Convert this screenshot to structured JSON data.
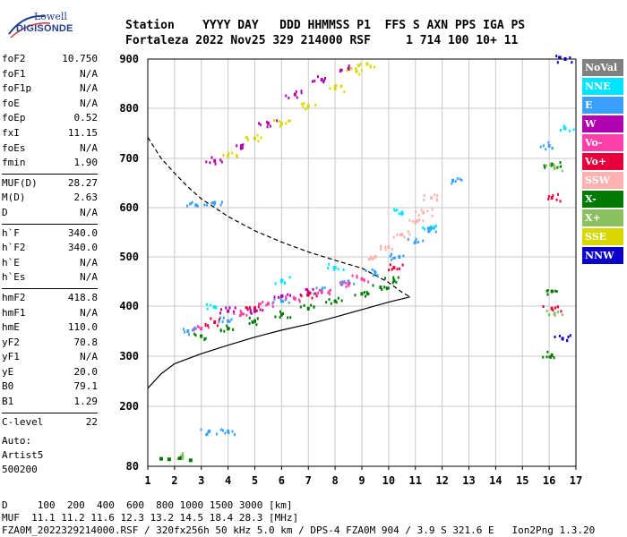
{
  "logo": {
    "line1": "Lowell",
    "line2": "DIGISONDE"
  },
  "header": {
    "labels": "Station    YYYY DAY   DDD HHMMSS P1  FFS S AXN PPS IGA PS",
    "values": "Fortaleza 2022 Nov25 329 214000 RSF     1 714 100 10+ 11"
  },
  "params_groups": [
    [
      {
        "label": "foF2",
        "value": "10.750"
      },
      {
        "label": "foF1",
        "value": "N/A"
      },
      {
        "label": "foF1p",
        "value": "N/A"
      },
      {
        "label": "foE",
        "value": "N/A"
      },
      {
        "label": "foEp",
        "value": "0.52"
      },
      {
        "label": "fxI",
        "value": "11.15"
      },
      {
        "label": "foEs",
        "value": "N/A"
      },
      {
        "label": "fmin",
        "value": "1.90"
      }
    ],
    [
      {
        "label": "MUF(D)",
        "value": "28.27"
      },
      {
        "label": "M(D)",
        "value": "2.63"
      },
      {
        "label": "D",
        "value": "N/A"
      }
    ],
    [
      {
        "label": "h`F",
        "value": "340.0"
      },
      {
        "label": "h`F2",
        "value": "340.0"
      },
      {
        "label": "h`E",
        "value": "N/A"
      },
      {
        "label": "h`Es",
        "value": "N/A"
      }
    ],
    [
      {
        "label": "hmF2",
        "value": "418.8"
      },
      {
        "label": "hmF1",
        "value": "N/A"
      },
      {
        "label": "hmE",
        "value": "110.0"
      },
      {
        "label": "yF2",
        "value": "70.8"
      },
      {
        "label": "yF1",
        "value": "N/A"
      },
      {
        "label": "yE",
        "value": "20.0"
      },
      {
        "label": "B0",
        "value": "79.1"
      },
      {
        "label": "B1",
        "value": "1.29"
      }
    ],
    [
      {
        "label": "C-level",
        "value": "22"
      }
    ]
  ],
  "auto": {
    "line1": "Auto:",
    "line2": "Artist5",
    "line3": "500200"
  },
  "footer": {
    "line1": "D     100  200  400  600  800 1000 1500 3000 [km]",
    "line2": "MUF  11.1 11.2 11.6 12.3 13.2 14.5 18.4 28.3 [MHz]",
    "line3": "FZA0M_2022329214000.RSF / 320fx256h 50 kHz 5.0 km / DPS-4 FZA0M 904 / 3.9 S 321.6 E   Ion2Png 1.3.20"
  },
  "legend": [
    {
      "label": "NoVal",
      "color": "#808080"
    },
    {
      "label": "NNE",
      "color": "#00e5ff"
    },
    {
      "label": "E",
      "color": "#3aa0ff"
    },
    {
      "label": "W",
      "color": "#b000b0"
    },
    {
      "label": "Vo-",
      "color": "#ff3fa8"
    },
    {
      "label": "Vo+",
      "color": "#e8003c"
    },
    {
      "label": "SSW",
      "color": "#ffb0b0"
    },
    {
      "label": "X-",
      "color": "#007a00"
    },
    {
      "label": "X+",
      "color": "#88c060"
    },
    {
      "label": "SSE",
      "color": "#d8d800"
    },
    {
      "label": "NNW",
      "color": "#0a00c8"
    }
  ],
  "chart_data": {
    "type": "scatter",
    "xlabel": "",
    "ylabel": "",
    "xlim": [
      1,
      17
    ],
    "ylim": [
      80,
      900
    ],
    "x_ticks": [
      1,
      2,
      3,
      4,
      5,
      6,
      7,
      8,
      9,
      10,
      11,
      12,
      13,
      14,
      15,
      16,
      17
    ],
    "y_ticks": [
      80,
      200,
      300,
      400,
      500,
      600,
      700,
      800,
      900
    ],
    "grid": true,
    "legend_position": "right",
    "series": [
      {
        "name": "NNE",
        "color": "#00e5ff",
        "points": [
          [
            3.5,
            398
          ],
          [
            6,
            452
          ],
          [
            8,
            478
          ],
          [
            10.5,
            590
          ],
          [
            11.6,
            560
          ],
          [
            16.6,
            760
          ]
        ]
      },
      {
        "name": "E",
        "color": "#3aa0ff",
        "points": [
          [
            2.5,
            350
          ],
          [
            4,
            370
          ],
          [
            6,
            410
          ],
          [
            7.5,
            432
          ],
          [
            8.5,
            450
          ],
          [
            9.5,
            468
          ],
          [
            10.4,
            500
          ],
          [
            11,
            530
          ],
          [
            11.5,
            552
          ],
          [
            12.4,
            655
          ],
          [
            16,
            725
          ],
          [
            2.8,
            605
          ],
          [
            3.5,
            610
          ],
          [
            3.3,
            150
          ],
          [
            4,
            150
          ]
        ]
      },
      {
        "name": "W",
        "color": "#b000b0",
        "points": [
          [
            4,
            390
          ],
          [
            5,
            390
          ],
          [
            6,
            420
          ],
          [
            7,
            428
          ],
          [
            3.5,
            695
          ],
          [
            4.5,
            725
          ],
          [
            5.5,
            770
          ],
          [
            6.5,
            828
          ],
          [
            7.5,
            858
          ],
          [
            8.5,
            880
          ]
        ]
      },
      {
        "name": "Vo-",
        "color": "#ff3fa8",
        "points": [
          [
            3,
            355
          ],
          [
            4.5,
            385
          ],
          [
            5.5,
            405
          ],
          [
            6.5,
            415
          ],
          [
            7.5,
            428
          ],
          [
            8.5,
            445
          ],
          [
            9,
            455
          ]
        ]
      },
      {
        "name": "Vo+",
        "color": "#e8003c",
        "points": [
          [
            3.5,
            368
          ],
          [
            5,
            396
          ],
          [
            7,
            423
          ],
          [
            10.2,
            478
          ],
          [
            16.1,
            620
          ],
          [
            16.1,
            395
          ]
        ]
      },
      {
        "name": "SSW",
        "color": "#ffb0b0",
        "points": [
          [
            9.5,
            500
          ],
          [
            10,
            520
          ],
          [
            10.5,
            545
          ],
          [
            11,
            570
          ],
          [
            11.3,
            590
          ],
          [
            11.6,
            620
          ]
        ]
      },
      {
        "name": "X-",
        "color": "#007a00",
        "points": [
          [
            3,
            340
          ],
          [
            4,
            355
          ],
          [
            5,
            370
          ],
          [
            6,
            383
          ],
          [
            7,
            395
          ],
          [
            8,
            410
          ],
          [
            9,
            425
          ],
          [
            9.7,
            438
          ],
          [
            10.2,
            452
          ],
          [
            16.1,
            688
          ],
          [
            16.1,
            430
          ],
          [
            16.1,
            302
          ]
        ]
      },
      {
        "name": "X+",
        "color": "#88c060",
        "points": [
          [
            16.2,
            680
          ],
          [
            16.2,
            385
          ],
          [
            2.3,
            100
          ]
        ]
      },
      {
        "name": "SSE",
        "color": "#d8d800",
        "points": [
          [
            5,
            740
          ],
          [
            6,
            770
          ],
          [
            7,
            805
          ],
          [
            8,
            840
          ],
          [
            8.8,
            875
          ],
          [
            9.2,
            890
          ],
          [
            4,
            705
          ]
        ]
      },
      {
        "name": "NNW",
        "color": "#0a00c8",
        "points": [
          [
            16.6,
            900
          ],
          [
            16.5,
            335
          ]
        ]
      }
    ],
    "profile_solid": [
      [
        1,
        236
      ],
      [
        1.5,
        265
      ],
      [
        2,
        285
      ],
      [
        2.5,
        295
      ],
      [
        3,
        305
      ],
      [
        4,
        322
      ],
      [
        5,
        338
      ],
      [
        6,
        352
      ],
      [
        7,
        364
      ],
      [
        8,
        378
      ],
      [
        9,
        393
      ],
      [
        10,
        408
      ],
      [
        10.6,
        416
      ],
      [
        10.8,
        418.8
      ]
    ],
    "profile_dashed": [
      [
        1,
        742
      ],
      [
        1.5,
        700
      ],
      [
        2,
        670
      ],
      [
        2.5,
        642
      ],
      [
        3,
        618
      ],
      [
        4,
        582
      ],
      [
        5,
        553
      ],
      [
        6,
        530
      ],
      [
        7,
        510
      ],
      [
        8,
        493
      ],
      [
        9,
        477
      ],
      [
        10,
        448
      ],
      [
        10.5,
        428
      ],
      [
        10.8,
        418.8
      ]
    ],
    "E_layer_points": [
      [
        1.5,
        95
      ],
      [
        1.8,
        94
      ],
      [
        2.2,
        96
      ],
      [
        2.6,
        92
      ]
    ]
  }
}
